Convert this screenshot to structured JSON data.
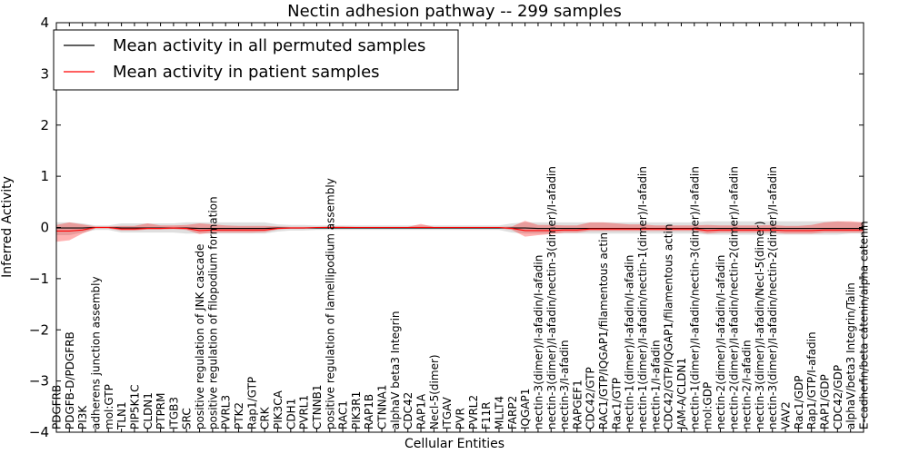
{
  "chart_data": {
    "type": "line",
    "title": "Nectin adhesion pathway -- 299 samples",
    "xlabel": "Cellular Entities",
    "ylabel": "Inferred Activity",
    "ylim": [
      -4,
      4
    ],
    "yticks": [
      -4,
      -3,
      -2,
      -1,
      0,
      1,
      2,
      3,
      4
    ],
    "ytick_labels": [
      "−4",
      "−3",
      "−2",
      "−1",
      "0",
      "1",
      "2",
      "3",
      "4"
    ],
    "legend_position": "top-left",
    "categories": [
      "PDGFRB",
      "PDGFB-D/PDGFRB",
      "PI3K",
      "adherens junction assembly",
      "mol:GTP",
      "TLN1",
      "PIP5K1C",
      "CLDN1",
      "PTPRM",
      "ITGB3",
      "SRC",
      "positive regulation of JNK cascade",
      "positive regulation of filopodium formation",
      "PVRL3",
      "PTK2",
      "Rap1/GTP",
      "CRK",
      "PIK3CA",
      "CDH1",
      "PVRL1",
      "CTNNB1",
      "positive regulation of lamellipodium assembly",
      "RAC1",
      "PIK3R1",
      "RAP1B",
      "CTNNA1",
      "alphaV beta3 Integrin",
      "CDC42",
      "RAP1A",
      "Necl-5(dimer)",
      "ITGAV",
      "PVR",
      "PVRL2",
      "F11R",
      "MLLT4",
      "FARP2",
      "IQGAP1",
      "nectin-3(dimer)/I-afadin/I-afadin",
      "nectin-3(dimer)/I-afadin/nectin-3(dimer)/I-afadin",
      "nectin-3/I-afadin",
      "RAPGEF1",
      "CDC42/GTP",
      "RAC1/GTP/IQGAP1/filamentous actin",
      "Rac1/GTP",
      "nectin-1(dimer)/I-afadin/I-afadin",
      "nectin-1(dimer)/I-afadin/nectin-1(dimer)/I-afadin",
      "nectin-1/I-afadin",
      "CDC42/GTP/IQGAP1/filamentous actin",
      "JAM-A/CLDN1",
      "nectin-1(dimer)/I-afadin/nectin-3(dimer)/I-afadin",
      "mol:GDP",
      "nectin-2(dimer)/I-afadin/I-afadin",
      "nectin-2(dimer)/I-afadin/nectin-2(dimer)/I-afadin",
      "nectin-2/I-afadin",
      "nectin-3(dimer)/I-afadin/Necl-5(dimer)",
      "nectin-3(dimer)/I-afadin/nectin-2(dimer)/I-afadin",
      "VAV2",
      "Rac1/GDP",
      "Rap1/GTP/I-afadin",
      "RAP1/GDP",
      "CDC42/GDP",
      "alphaV/beta3 Integrin/Talin",
      "E-cadherin/beta catenin/alpha catenin"
    ],
    "series": [
      {
        "name": "Mean activity in all permuted samples",
        "color": "#000000",
        "values": [
          -0.01,
          -0.01,
          -0.01,
          0,
          0,
          -0.01,
          -0.01,
          -0.01,
          -0.01,
          -0.01,
          -0.01,
          -0.02,
          -0.02,
          -0.02,
          -0.02,
          -0.02,
          -0.02,
          -0.01,
          -0.01,
          -0.01,
          -0.01,
          -0.01,
          -0.01,
          -0.01,
          -0.01,
          -0.01,
          -0.01,
          -0.01,
          -0.01,
          -0.01,
          -0.01,
          -0.01,
          -0.01,
          -0.01,
          -0.01,
          -0.01,
          -0.01,
          -0.02,
          -0.02,
          -0.02,
          -0.02,
          -0.02,
          -0.02,
          -0.02,
          -0.02,
          -0.02,
          -0.02,
          -0.02,
          -0.02,
          -0.02,
          -0.02,
          -0.02,
          -0.02,
          -0.02,
          -0.02,
          -0.02,
          -0.02,
          -0.02,
          -0.02,
          -0.02,
          -0.02,
          -0.02,
          -0.02
        ],
        "band_lower": [
          -0.15,
          -0.15,
          -0.1,
          -0.05,
          -0.05,
          -0.1,
          -0.1,
          -0.1,
          -0.1,
          -0.1,
          -0.12,
          -0.12,
          -0.12,
          -0.12,
          -0.12,
          -0.12,
          -0.12,
          -0.08,
          -0.06,
          -0.06,
          -0.05,
          -0.05,
          -0.05,
          -0.05,
          -0.05,
          -0.05,
          -0.05,
          -0.05,
          -0.05,
          -0.05,
          -0.05,
          -0.05,
          -0.05,
          -0.05,
          -0.05,
          -0.1,
          -0.12,
          -0.12,
          -0.12,
          -0.12,
          -0.12,
          -0.12,
          -0.12,
          -0.12,
          -0.12,
          -0.12,
          -0.12,
          -0.12,
          -0.12,
          -0.12,
          -0.14,
          -0.14,
          -0.14,
          -0.14,
          -0.14,
          -0.14,
          -0.14,
          -0.14,
          -0.14,
          -0.14,
          -0.14,
          -0.12,
          -0.12
        ],
        "band_upper": [
          0.1,
          0.1,
          0.08,
          0.04,
          0.04,
          0.08,
          0.08,
          0.08,
          0.08,
          0.08,
          0.1,
          0.1,
          0.1,
          0.1,
          0.1,
          0.1,
          0.1,
          0.06,
          0.05,
          0.05,
          0.04,
          0.04,
          0.04,
          0.04,
          0.04,
          0.04,
          0.04,
          0.04,
          0.04,
          0.04,
          0.04,
          0.04,
          0.04,
          0.04,
          0.04,
          0.08,
          0.1,
          0.1,
          0.1,
          0.1,
          0.1,
          0.1,
          0.1,
          0.1,
          0.1,
          0.1,
          0.1,
          0.1,
          0.1,
          0.1,
          0.12,
          0.12,
          0.12,
          0.12,
          0.12,
          0.12,
          0.12,
          0.12,
          0.12,
          0.12,
          0.12,
          0.1,
          0.1
        ]
      },
      {
        "name": "Mean activity in patient samples",
        "color": "#ff0000",
        "values": [
          -0.07,
          -0.07,
          -0.05,
          0,
          0,
          -0.03,
          -0.03,
          -0.02,
          -0.02,
          -0.01,
          -0.02,
          -0.06,
          -0.05,
          -0.05,
          -0.05,
          -0.05,
          -0.05,
          -0.02,
          -0.01,
          -0.01,
          0,
          0,
          0,
          0,
          0,
          0,
          0,
          0,
          0,
          0,
          0,
          0,
          0,
          0,
          0,
          -0.02,
          -0.06,
          -0.06,
          -0.06,
          -0.05,
          -0.05,
          -0.03,
          -0.03,
          -0.03,
          -0.03,
          -0.03,
          -0.03,
          -0.03,
          -0.03,
          -0.03,
          -0.06,
          -0.05,
          -0.05,
          -0.05,
          -0.05,
          -0.05,
          -0.06,
          -0.06,
          -0.06,
          -0.05,
          -0.05,
          -0.05,
          -0.05
        ],
        "band_lower": [
          -0.28,
          -0.25,
          -0.12,
          -0.02,
          -0.02,
          -0.06,
          -0.06,
          -0.04,
          -0.04,
          -0.03,
          -0.05,
          -0.13,
          -0.1,
          -0.1,
          -0.1,
          -0.1,
          -0.09,
          -0.04,
          -0.02,
          -0.02,
          -0.01,
          -0.01,
          -0.01,
          -0.01,
          -0.01,
          -0.01,
          -0.01,
          -0.01,
          -0.01,
          -0.01,
          -0.01,
          -0.01,
          -0.01,
          -0.01,
          -0.01,
          -0.05,
          -0.18,
          -0.15,
          -0.13,
          -0.1,
          -0.1,
          -0.07,
          -0.07,
          -0.07,
          -0.07,
          -0.07,
          -0.07,
          -0.07,
          -0.07,
          -0.07,
          -0.12,
          -0.1,
          -0.1,
          -0.1,
          -0.1,
          -0.1,
          -0.12,
          -0.12,
          -0.12,
          -0.1,
          -0.1,
          -0.1,
          -0.1
        ],
        "band_upper": [
          0.05,
          0.1,
          0.06,
          0.02,
          0.02,
          0.03,
          0.03,
          0.08,
          0.04,
          0.04,
          0.05,
          0.08,
          0.06,
          0.04,
          0.03,
          0.03,
          0.03,
          0.02,
          0.01,
          0.01,
          0.01,
          0.02,
          0.02,
          0.01,
          0.01,
          0.01,
          0.01,
          0.01,
          0.07,
          0.01,
          0.01,
          0.01,
          0.01,
          0.01,
          0.01,
          0.02,
          0.13,
          0.05,
          0.05,
          0.04,
          0.04,
          0.1,
          0.1,
          0.08,
          0.06,
          0.06,
          0.04,
          0.04,
          0.04,
          0.04,
          0.05,
          0.04,
          0.04,
          0.04,
          0.04,
          0.05,
          0.03,
          0.03,
          0.05,
          0.1,
          0.12,
          0.12,
          0.1
        ]
      }
    ]
  }
}
